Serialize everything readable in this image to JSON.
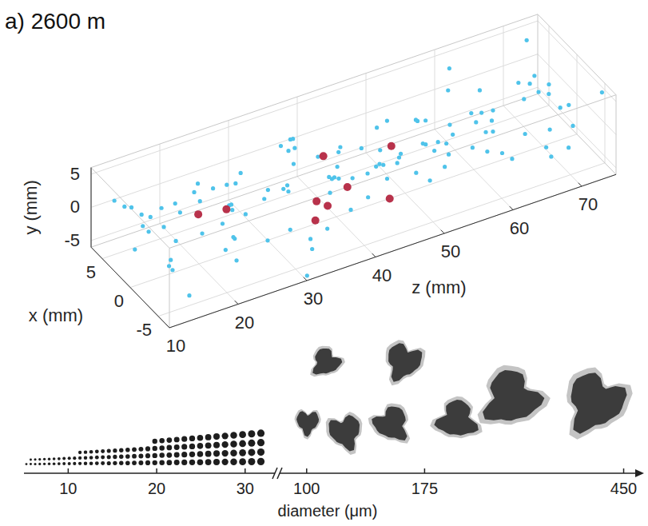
{
  "chart_data": [
    {
      "type": "scatter3d",
      "title": "a) 2600 m",
      "xlabel": "x (mm)",
      "ylabel": "y (mm)",
      "zlabel": "z (mm)",
      "xlim": [
        -7,
        7
      ],
      "ylim": [
        -6,
        6
      ],
      "zlim": [
        10,
        75
      ],
      "xticks": [
        -5,
        0,
        5
      ],
      "yticks": [
        -5,
        0,
        5
      ],
      "zticks": [
        10,
        20,
        30,
        40,
        50,
        60,
        70
      ],
      "grid": true,
      "series": [
        {
          "color": "#4fc3ea",
          "marker": "circle",
          "x": [
            -6.2,
            3.1,
            -1.4,
            5.8,
            0.7,
            -4.3,
            2.5,
            -2.9,
            6.4,
            -0.3,
            4.2,
            -5.5,
            1.6,
            -3.6,
            5.1,
            -1.9,
            3.7,
            -6.6,
            0.2,
            2.9,
            -4.8,
            6.1,
            -2.2,
            1.1,
            -0.8,
            4.6,
            -5.9,
            2.0,
            -3.3,
            5.4,
            0.9,
            -6.8,
            3.4,
            -1.1,
            6.7,
            -4.0,
            1.9,
            -2.6,
            4.9,
            -0.5,
            -5.2,
            2.7,
            -3.9,
            6.0,
            0.4,
            -1.7,
            3.9,
            -6.0,
            1.3,
            5.6,
            -2.4,
            4.4,
            -4.6,
            0.0,
            6.9,
            -3.0,
            2.2,
            -5.7,
            1.5,
            -0.9,
            3.3,
            -6.4,
            5.0,
            -2.0,
            0.6,
            -4.4,
            4.0,
            -1.2,
            6.3,
            -3.4,
            1.8,
            -5.0,
            2.6,
            -0.1,
            5.3,
            -6.9,
            3.6,
            -2.7,
            0.3,
            4.7,
            -4.1,
            6.5,
            -1.6,
            2.4,
            -5.3,
            1.0,
            -3.1,
            5.7,
            -0.6,
            3.0,
            -6.3,
            0.8,
            4.5,
            -2.3,
            6.2,
            -4.9,
            1.4,
            -1.0,
            3.8,
            -5.6,
            2.1,
            -3.7,
            5.5,
            -0.4,
            -6.1,
            4.1,
            -2.5,
            0.5,
            6.6,
            -4.5,
            1.2,
            -1.5,
            3.5,
            -5.1,
            5.9,
            -2.8,
            0.1,
            4.8,
            -3.8,
            2.3
          ],
          "y": [
            2.4,
            -4.1,
            5.2,
            -0.7,
            1.8,
            -5.3,
            3.6,
            -2.2,
            0.5,
            4.7,
            -3.4,
            1.1,
            -5.8,
            3.0,
            -1.5,
            5.6,
            -2.9,
            0.2,
            4.1,
            -4.7,
            1.5,
            -0.9,
            3.8,
            -5.0,
            5.4,
            -2.6,
            0.8,
            -3.9,
            2.9,
            -1.2,
            4.5,
            -5.5,
            0.3,
            2.2,
            -3.1,
            5.9,
            -1.8,
            3.3,
            -4.4,
            1.0,
            -2.0,
            4.9,
            -5.1,
            0.6,
            3.7,
            -3.6,
            1.9,
            -0.4,
            5.0,
            -4.9,
            2.7,
            -1.1,
            4.3,
            -5.7,
            0.0,
            3.1,
            -2.5,
            5.5,
            -3.8,
            1.4,
            -0.2,
            3.9,
            -4.3,
            2.0,
            -5.4,
            4.8,
            -1.6,
            0.9,
            -3.0,
            5.7,
            -2.7,
            1.7,
            -5.9,
            4.0,
            -0.8,
            2.6,
            -4.0,
            3.4,
            -1.4,
            0.4,
            5.1,
            -3.3,
            1.2,
            -5.2,
            3.5,
            -0.6,
            4.6,
            -2.1,
            0.7,
            -4.6,
            2.3,
            -1.9,
            5.3,
            -3.7,
            0.1,
            4.4,
            -5.6,
            1.6,
            -2.4,
            3.2,
            -0.5,
            5.8,
            -4.2,
            2.8,
            -1.0,
            0.9,
            -3.5,
            4.2,
            -5.0,
            1.3,
            3.6,
            -2.8,
            0.0,
            4.9,
            -4.8,
            2.1,
            -1.3,
            5.2,
            -3.2,
            0.3
          ],
          "z": [
            10.6,
            13.2,
            11.8,
            14.9,
            12.4,
            15.1,
            11.2,
            13.8,
            12.9,
            14.3,
            16.1,
            19.4,
            17.2,
            20.5,
            15.8,
            18.6,
            17.9,
            20.1,
            16.7,
            19.0,
            21.3,
            24.8,
            22.6,
            25.9,
            23.4,
            21.0,
            25.2,
            22.1,
            24.1,
            23.7,
            26.8,
            30.2,
            28.1,
            31.4,
            27.5,
            29.6,
            26.4,
            30.9,
            28.7,
            29.1,
            32.0,
            35.5,
            33.3,
            36.8,
            34.1,
            31.9,
            36.2,
            33.8,
            35.0,
            34.6,
            37.4,
            40.9,
            38.6,
            42.1,
            39.3,
            37.9,
            41.5,
            39.9,
            40.3,
            38.2,
            43.0,
            46.4,
            44.2,
            47.5,
            45.1,
            42.7,
            46.9,
            44.8,
            45.7,
            43.6,
            48.3,
            51.7,
            49.5,
            52.9,
            50.2,
            48.0,
            52.3,
            50.8,
            49.1,
            51.2,
            53.6,
            57.1,
            54.7,
            58.3,
            55.5,
            53.4,
            57.8,
            56.2,
            54.3,
            56.7,
            59.0,
            62.4,
            60.1,
            63.7,
            61.3,
            58.8,
            63.1,
            61.8,
            59.6,
            62.9,
            64.5,
            67.9,
            65.6,
            69.1,
            66.3,
            64.2,
            68.5,
            66.9,
            65.0,
            67.4,
            69.8,
            73.2,
            71.0,
            74.5,
            72.1,
            70.3,
            73.9,
            71.6,
            70.7,
            72.8
          ]
        },
        {
          "color": "#b8324b",
          "marker": "circle",
          "x": [
            0,
            0,
            0,
            0,
            0,
            -1,
            -2,
            -3,
            -4
          ],
          "y": [
            1.5,
            0.8,
            3.8,
            1.8,
            -2.1,
            -1.5,
            -1.6,
            -2.0,
            -1.4
          ],
          "z": [
            19.9,
            24.0,
            38.1,
            48.0,
            41.6,
            36.3,
            37.1,
            34.5,
            44.5
          ]
        }
      ]
    },
    {
      "type": "axis",
      "xlabel": "diameter (μm)",
      "segments": [
        {
          "xlim": [
            5,
            33
          ],
          "xticks": [
            10,
            20,
            30
          ]
        },
        {
          "xlim": [
            90,
            470
          ],
          "xticks": [
            100,
            175,
            450
          ],
          "log": "x"
        }
      ]
    }
  ]
}
